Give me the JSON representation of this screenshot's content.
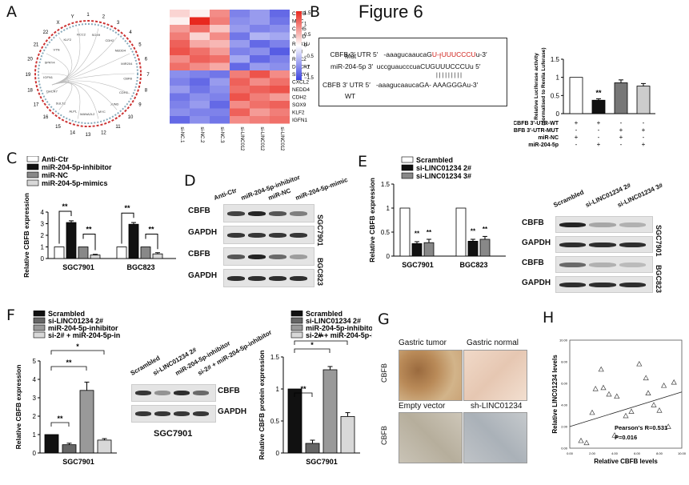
{
  "figure_title": "Figure 6",
  "panels": {
    "A": {
      "label": "A",
      "circos_labels": [
        "SOX9",
        "CDH2",
        "NEDD4",
        "MIR204",
        "CBFB",
        "CDH5",
        "JUND",
        "MYC",
        "MANA2L2",
        "ALPL",
        "SULT2",
        "DHCR7",
        "IGFN1",
        "SPRY4",
        "VTN",
        "KLF2",
        "RCC2"
      ],
      "circos_numbers": [
        "1",
        "2",
        "3",
        "4",
        "5",
        "6",
        "7",
        "8",
        "9",
        "10",
        "11",
        "12",
        "13",
        "14",
        "15",
        "16",
        "17",
        "18",
        "19",
        "20",
        "21",
        "22",
        "X",
        "Y"
      ],
      "heatmap_genes": [
        "CBFB",
        "MYC",
        "CDH5",
        "JUND",
        "RAB11A",
        "VTN",
        "RCC2",
        "DHCR7",
        "SPRY4",
        "CXCL2",
        "NEDD4",
        "CDH2",
        "SOX9",
        "KLF2",
        "IGFN1"
      ],
      "heatmap_samples": [
        "si-NC.1",
        "si-NC.2",
        "si-NC.3",
        "si-LINC01234.1",
        "si-LINC01234.2",
        "si-LINC01234.3"
      ],
      "heatmap_values": [
        [
          0.3,
          0.1,
          0.8,
          -1.0,
          -0.8,
          -1.2
        ],
        [
          0.1,
          1.5,
          0.9,
          -0.9,
          -0.8,
          -1.1
        ],
        [
          0.7,
          1.0,
          0.4,
          -0.8,
          -1.0,
          -0.9
        ],
        [
          0.9,
          0.3,
          0.8,
          -1.1,
          -0.6,
          -0.7
        ],
        [
          1.1,
          0.6,
          0.5,
          -0.8,
          -1.2,
          -1.0
        ],
        [
          1.2,
          1.0,
          0.7,
          -1.0,
          -0.9,
          -1.3
        ],
        [
          0.8,
          1.1,
          1.0,
          -0.7,
          -1.2,
          -1.0
        ],
        [
          1.0,
          0.8,
          0.6,
          -1.2,
          -0.8,
          -0.9
        ],
        [
          -0.9,
          -1.0,
          -1.1,
          0.9,
          1.2,
          0.8
        ],
        [
          -1.0,
          -1.2,
          -0.8,
          1.1,
          0.8,
          1.0
        ],
        [
          -0.8,
          -1.1,
          -0.9,
          1.0,
          1.1,
          1.2
        ],
        [
          -1.1,
          -0.9,
          -1.0,
          1.2,
          0.9,
          0.7
        ],
        [
          -1.0,
          -0.8,
          -1.2,
          0.8,
          1.0,
          1.1
        ],
        [
          -0.9,
          -1.0,
          -1.0,
          1.1,
          0.7,
          0.9
        ],
        [
          -1.2,
          -0.9,
          -1.1,
          0.8,
          0.9,
          1.0
        ]
      ],
      "colorbar_ticks": [
        "1.5",
        "1",
        "0.5",
        "0",
        "−0.5",
        "−1",
        "−1.5"
      ],
      "colors": {
        "high": "#e8281e",
        "mid": "#ffffff",
        "low": "#3d44e0"
      }
    },
    "B": {
      "label": "B",
      "mut_line1": "CBFB 3′ UTR 5′   -aaagucaaucaG",
      "mut_red": "U--UUUCCCU",
      "mut_tail": "u-3′",
      "mut_tag": "Mut",
      "mir_line": "miR-204-5p 3′  uccguaucccuaCUGUUUCCCUu 5′",
      "bars": "| | | | | | | | |",
      "wt_line": "CBFB 3′ UTR 5′   -aaagucaaucaGA- AAAGGGAu-3′",
      "wt_tag": "WT",
      "ylabel": "Relative Luciferase activity\n(normalised to Renila Luferase)",
      "row_labels": [
        "CBFB 3′-UTR-WT",
        "CBFB 3′-UTR-MUT",
        "miR-NC",
        "miR-204-5p"
      ],
      "row_signs": [
        [
          "+",
          "+",
          "-",
          "-"
        ],
        [
          "-",
          "-",
          "+",
          "+"
        ],
        [
          "+",
          "-",
          "+",
          "-"
        ],
        [
          "-",
          "+",
          "-",
          "+"
        ]
      ],
      "sig": "**"
    },
    "C": {
      "label": "C",
      "legend": [
        "Anti-Ctr",
        "miR-204-5p-inhibitor",
        "miR-NC",
        "miR-204-5p-mimics"
      ],
      "ylabel": "Relative CBFB expression",
      "groups": [
        "SGC7901",
        "BGC823"
      ],
      "sig": "**"
    },
    "D": {
      "label": "D",
      "lanes": [
        "Anti-Ctr",
        "miR-204-5p-inhibitor",
        "miR-NC",
        "miR-204-5p-mimic"
      ],
      "rows": [
        "CBFB",
        "GAPDH",
        "CBFB",
        "GAPDH"
      ],
      "cells": [
        "SGC7901",
        "BGC823"
      ]
    },
    "E": {
      "label": "E",
      "legend": [
        "Scrambled",
        "si-LINC01234 2#",
        "si-LINC01234 3#"
      ],
      "ylabel": "Relative CBFB expression",
      "groups": [
        "SGC7901",
        "BGC823"
      ],
      "blot_lanes": [
        "Scrambled",
        "si-LINC01234 2#",
        "si-LINC01234 3#"
      ],
      "blot_rows": [
        "CBFB",
        "GAPDH",
        "CBFB",
        "GAPDH"
      ],
      "cells": [
        "SGC7901",
        "BGC823"
      ],
      "sig": "**"
    },
    "F": {
      "label": "F",
      "legend": [
        "Scrambled",
        "si-LINC01234 2#",
        "miR-204-5p-inhibitor",
        "si-2# + miR-204-5p-in"
      ],
      "ylabel_left": "Relative CBFB expression",
      "ylabel_right": "Relative CBFB protein expression",
      "blot_lanes": [
        "Scrambled",
        "si-LINC01234 2#",
        "miR-204-5p-inhibitor",
        "si-2# + miR-204-5p-inhibitor"
      ],
      "blot_rows": [
        "CBFB",
        "GAPDH"
      ],
      "group": "SGC7901",
      "sig_double": "**",
      "sig_single": "*"
    },
    "G": {
      "label": "G",
      "titles": [
        "Gastric tumor",
        "Gastric normal",
        "Empty vector",
        "sh-LINC01234"
      ],
      "row_label": "CBFB"
    },
    "H": {
      "label": "H",
      "ylabel": "Relative LINC01234 levels",
      "xlabel": "Relative CBFB levels",
      "stat1": "Pearson's R=0.531",
      "stat2": "P=0.016"
    }
  },
  "chart_data": [
    {
      "type": "bar",
      "panel": "B",
      "categories": [
        "1",
        "2",
        "3",
        "4"
      ],
      "values": [
        1.0,
        0.37,
        0.85,
        0.76
      ],
      "errors": [
        0,
        0.04,
        0.08,
        0.07
      ],
      "ylim": [
        0,
        1.5
      ],
      "yticks": [
        0,
        0.5,
        1.0,
        1.5
      ],
      "colors": [
        "#ffffff",
        "#111111",
        "#777777",
        "#cccccc"
      ]
    },
    {
      "type": "bar",
      "panel": "C",
      "categories": [
        "SGC7901",
        "BGC823"
      ],
      "series": [
        {
          "name": "Anti-Ctr",
          "values": [
            1.0,
            1.0
          ]
        },
        {
          "name": "miR-204-5p-inhibitor",
          "values": [
            3.1,
            2.95
          ]
        },
        {
          "name": "miR-NC",
          "values": [
            1.0,
            1.0
          ]
        },
        {
          "name": "miR-204-5p-mimics",
          "values": [
            0.3,
            0.4
          ]
        }
      ],
      "errors": [
        [
          0,
          0
        ],
        [
          0.15,
          0.15
        ],
        [
          0,
          0
        ],
        [
          0.06,
          0.1
        ]
      ],
      "ylim": [
        0,
        4
      ],
      "yticks": [
        0,
        1,
        2,
        3,
        4
      ],
      "colors": [
        "#ffffff",
        "#111111",
        "#888888",
        "#d8d8d8"
      ]
    },
    {
      "type": "bar",
      "panel": "E",
      "categories": [
        "SGC7901",
        "BGC823"
      ],
      "series": [
        {
          "name": "Scrambled",
          "values": [
            1.0,
            1.0
          ]
        },
        {
          "name": "si-LINC01234 2#",
          "values": [
            0.26,
            0.31
          ]
        },
        {
          "name": "si-LINC01234 3#",
          "values": [
            0.28,
            0.35
          ]
        }
      ],
      "errors": [
        [
          0,
          0
        ],
        [
          0.04,
          0.04
        ],
        [
          0.07,
          0.06
        ]
      ],
      "ylim": [
        0,
        1.5
      ],
      "yticks": [
        0,
        0.5,
        1.0,
        1.5
      ],
      "colors": [
        "#ffffff",
        "#111111",
        "#888888"
      ]
    },
    {
      "type": "bar",
      "panel": "F-left",
      "categories": [
        "SGC7901"
      ],
      "series": [
        {
          "name": "Scrambled",
          "values": [
            1.0
          ]
        },
        {
          "name": "si-LINC01234 2#",
          "values": [
            0.45
          ]
        },
        {
          "name": "miR-204-5p-inhibitor",
          "values": [
            3.4
          ]
        },
        {
          "name": "si-2# + miR-204-5p-in",
          "values": [
            0.7
          ]
        }
      ],
      "errors": [
        [
          0
        ],
        [
          0.08
        ],
        [
          0.45
        ],
        [
          0.08
        ]
      ],
      "ylim": [
        0,
        5
      ],
      "yticks": [
        0,
        1,
        2,
        3,
        4,
        5
      ],
      "colors": [
        "#111111",
        "#666666",
        "#999999",
        "#d8d8d8"
      ]
    },
    {
      "type": "bar",
      "panel": "F-right",
      "categories": [
        "SGC7901"
      ],
      "series": [
        {
          "name": "Scrambled",
          "values": [
            1.0
          ]
        },
        {
          "name": "si-LINC01234 2#",
          "values": [
            0.15
          ]
        },
        {
          "name": "miR-204-5p-inhibitor",
          "values": [
            1.3
          ]
        },
        {
          "name": "si-2# + miR-204-5p-in",
          "values": [
            0.57
          ]
        }
      ],
      "errors": [
        [
          0
        ],
        [
          0.05
        ],
        [
          0.05
        ],
        [
          0.06
        ]
      ],
      "ylim": [
        0,
        1.5
      ],
      "yticks": [
        0,
        0.5,
        1.0,
        1.5
      ],
      "colors": [
        "#111111",
        "#666666",
        "#999999",
        "#d8d8d8"
      ]
    },
    {
      "type": "scatter",
      "panel": "H",
      "x": [
        1.0,
        1.5,
        2.0,
        2.3,
        3.0,
        3.5,
        2.8,
        4.0,
        4.2,
        5.0,
        5.5,
        6.2,
        6.8,
        7.0,
        7.5,
        8.0,
        8.4,
        8.8,
        9.3
      ],
      "y": [
        0.7,
        0.5,
        3.3,
        5.5,
        5.6,
        5.0,
        7.3,
        1.2,
        4.8,
        3.0,
        3.4,
        7.8,
        6.5,
        5.1,
        4.0,
        3.5,
        5.8,
        2.0,
        6.1
      ],
      "xlim": [
        0,
        10
      ],
      "ylim": [
        0,
        10
      ],
      "fit": {
        "slope": 0.32,
        "intercept": 2.0
      }
    }
  ]
}
